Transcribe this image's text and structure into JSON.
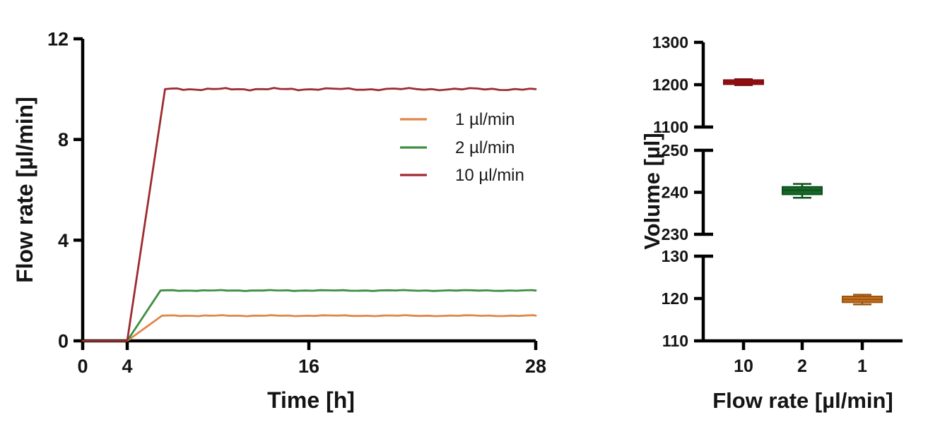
{
  "figure": {
    "background": "#ffffff",
    "text_color": "#141414",
    "axis_color": "#000000"
  },
  "chart_data": [
    {
      "id": "flow_rate_vs_time",
      "type": "line",
      "title": "",
      "xlabel": "Time [h]",
      "ylabel": "Flow rate [µl/min]",
      "xlim": [
        0,
        28
      ],
      "ylim": [
        0,
        12
      ],
      "x_ticks": [
        0,
        4,
        16,
        28
      ],
      "y_ticks": [
        0,
        4,
        8,
        12
      ],
      "grid": false,
      "legend_position": "inside upper right",
      "series": [
        {
          "name": "1 µl/min",
          "color": "#E0874A",
          "setpoint": 1,
          "ramp_start": 4,
          "plateau_start": 6.3,
          "points": [
            [
              0,
              0
            ],
            [
              4,
              0
            ],
            [
              6.3,
              1
            ],
            [
              28,
              1
            ]
          ]
        },
        {
          "name": "2 µl/min",
          "color": "#3E8E41",
          "setpoint": 2,
          "ramp_start": 4,
          "plateau_start": 6.2,
          "points": [
            [
              0,
              0
            ],
            [
              4,
              0
            ],
            [
              6.2,
              2
            ],
            [
              28,
              2
            ]
          ]
        },
        {
          "name": "10 µl/min",
          "color": "#9E2B30",
          "setpoint": 10,
          "ramp_start": 4,
          "plateau_start": 6.5,
          "points": [
            [
              0,
              0
            ],
            [
              4,
              0
            ],
            [
              6.5,
              10
            ],
            [
              28,
              10
            ]
          ]
        }
      ]
    },
    {
      "id": "volume_vs_flow_rate",
      "type": "box",
      "title": "",
      "xlabel": "Flow rate [µl/min]",
      "ylabel": "Volume [µl]",
      "categories": [
        "10",
        "2",
        "1"
      ],
      "axis_broken": true,
      "segments": [
        {
          "range": [
            1100,
            1300
          ],
          "ticks": [
            1100,
            1200,
            1300
          ]
        },
        {
          "range": [
            230,
            250
          ],
          "ticks": [
            230,
            240,
            250
          ]
        },
        {
          "range": [
            110,
            130
          ],
          "ticks": [
            110,
            120,
            130
          ]
        }
      ],
      "boxes": [
        {
          "category": "10",
          "segment": 0,
          "median": 1206,
          "q1": 1201,
          "q3": 1211,
          "whisker_low": 1199,
          "whisker_high": 1213,
          "fill": "#B01217",
          "stroke": "#7E0D10"
        },
        {
          "category": "2",
          "segment": 1,
          "median": 240.5,
          "q1": 239.5,
          "q3": 241.3,
          "whisker_low": 238.7,
          "whisker_high": 242.0,
          "fill": "#166A28",
          "stroke": "#0F4F1D"
        },
        {
          "category": "1",
          "segment": 2,
          "median": 119.8,
          "q1": 119.1,
          "q3": 120.5,
          "whisker_low": 118.6,
          "whisker_high": 120.9,
          "fill": "#C9721B",
          "stroke": "#995312"
        }
      ]
    }
  ]
}
